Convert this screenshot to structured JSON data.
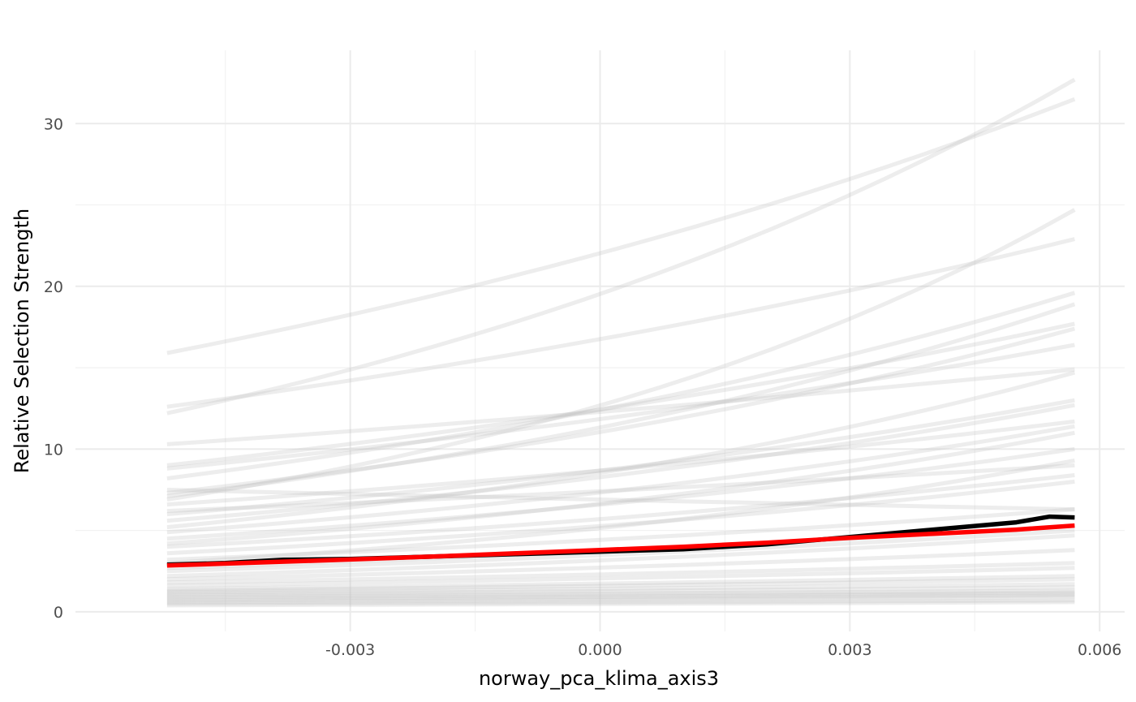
{
  "chart_data": {
    "type": "line",
    "title": "",
    "xlabel": "norway_pca_klima_axis3",
    "ylabel": "Relative Selection Strength",
    "xlim": [
      -0.0063,
      0.0063
    ],
    "ylim": [
      -1.2,
      34.5
    ],
    "x_ticks": [
      -0.003,
      0.0,
      0.003,
      0.006
    ],
    "x_tick_labels": [
      "-0.003",
      "0.000",
      "0.003",
      "0.006"
    ],
    "y_ticks": [
      0,
      10,
      20,
      30
    ],
    "y_tick_labels": [
      "0",
      "10",
      "20",
      "30"
    ],
    "grid": true,
    "legend": "none",
    "x_range": [
      -0.0052,
      0.0057
    ],
    "colors": {
      "individual": "#bfbfbf",
      "individual_opacity": 0.28,
      "mean": "#000000",
      "fit": "#ff0000"
    },
    "individual_curves": [
      [
        15.9,
        31.5
      ],
      [
        12.6,
        22.9
      ],
      [
        12.2,
        32.7
      ],
      [
        10.3,
        14.9
      ],
      [
        9.0,
        17.7
      ],
      [
        8.8,
        16.4
      ],
      [
        8.2,
        19.6
      ],
      [
        7.3,
        17.4
      ],
      [
        7.1,
        18.9
      ],
      [
        6.9,
        24.7
      ],
      [
        6.6,
        11.7
      ],
      [
        6.2,
        9.0
      ],
      [
        6.0,
        13.0
      ],
      [
        5.6,
        12.7
      ],
      [
        5.2,
        14.7
      ],
      [
        4.9,
        11.4
      ],
      [
        4.5,
        10.0
      ],
      [
        4.2,
        11.0
      ],
      [
        4.0,
        8.4
      ],
      [
        3.6,
        8.0
      ],
      [
        3.2,
        6.3
      ],
      [
        3.0,
        9.3
      ],
      [
        2.7,
        5.3
      ],
      [
        2.5,
        5.0
      ],
      [
        2.2,
        4.7
      ],
      [
        2.0,
        3.8
      ],
      [
        1.8,
        3.0
      ],
      [
        1.6,
        2.7
      ],
      [
        1.4,
        2.2
      ],
      [
        1.3,
        2.0
      ],
      [
        1.2,
        1.7
      ],
      [
        1.1,
        1.5
      ],
      [
        1.0,
        1.3
      ],
      [
        0.9,
        1.2
      ],
      [
        0.8,
        1.1
      ],
      [
        0.7,
        1.0
      ],
      [
        0.6,
        0.9
      ],
      [
        0.5,
        0.7
      ],
      [
        0.4,
        0.6
      ],
      [
        7.5,
        6.3
      ]
    ],
    "series": [
      {
        "x": [
          -0.0052,
          -0.0045,
          -0.0038,
          -0.003,
          -0.002,
          -0.001,
          0.0,
          0.001,
          0.002,
          0.003,
          0.004,
          0.005,
          0.0054,
          0.0057
        ],
        "values": [
          2.9,
          3.0,
          3.2,
          3.25,
          3.4,
          3.55,
          3.7,
          3.85,
          4.15,
          4.6,
          5.05,
          5.5,
          5.85,
          5.8
        ]
      },
      {
        "x": [
          -0.0052,
          -0.004,
          -0.003,
          -0.002,
          -0.001,
          0.0,
          0.001,
          0.002,
          0.003,
          0.004,
          0.005,
          0.0057
        ],
        "values": [
          2.85,
          3.05,
          3.22,
          3.4,
          3.6,
          3.8,
          4.0,
          4.25,
          4.55,
          4.8,
          5.05,
          5.3
        ]
      }
    ]
  }
}
